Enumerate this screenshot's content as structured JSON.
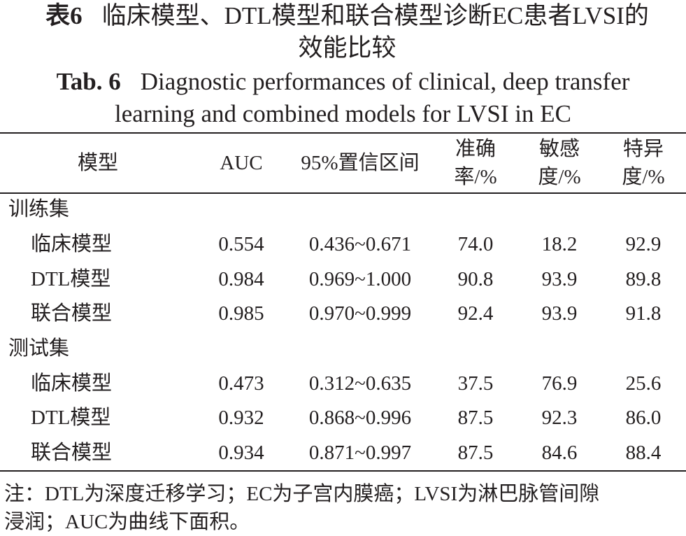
{
  "caption": {
    "cn_label": "表6",
    "cn_title_line1": "临床模型、DTL模型和联合模型诊断EC患者LVSI的",
    "cn_title_line2": "效能比较",
    "en_label": "Tab. 6",
    "en_title_line1": "Diagnostic performances of clinical, deep transfer",
    "en_title_line2": "learning and combined models for LVSI in EC"
  },
  "table": {
    "headers": {
      "model": "模型",
      "auc": "AUC",
      "ci": "95%置信区间",
      "accuracy_1": "准确",
      "accuracy_2": "率/%",
      "sensitivity_1": "敏感",
      "sensitivity_2": "度/%",
      "specificity_1": "特异",
      "specificity_2": "度/%"
    },
    "groups": [
      {
        "name": "训练集",
        "rows": [
          {
            "model": "临床模型",
            "auc": "0.554",
            "ci": "0.436~0.671",
            "accuracy": "74.0",
            "sensitivity": "18.2",
            "specificity": "92.9"
          },
          {
            "model": "DTL模型",
            "auc": "0.984",
            "ci": "0.969~1.000",
            "accuracy": "90.8",
            "sensitivity": "93.9",
            "specificity": "89.8"
          },
          {
            "model": "联合模型",
            "auc": "0.985",
            "ci": "0.970~0.999",
            "accuracy": "92.4",
            "sensitivity": "93.9",
            "specificity": "91.8"
          }
        ]
      },
      {
        "name": "测试集",
        "rows": [
          {
            "model": "临床模型",
            "auc": "0.473",
            "ci": "0.312~0.635",
            "accuracy": "37.5",
            "sensitivity": "76.9",
            "specificity": "25.6"
          },
          {
            "model": "DTL模型",
            "auc": "0.932",
            "ci": "0.868~0.996",
            "accuracy": "87.5",
            "sensitivity": "92.3",
            "specificity": "86.0"
          },
          {
            "model": "联合模型",
            "auc": "0.934",
            "ci": "0.871~0.997",
            "accuracy": "87.5",
            "sensitivity": "84.6",
            "specificity": "88.4"
          }
        ]
      }
    ]
  },
  "note": {
    "line1": "注：DTL为深度迁移学习；EC为子宫内膜癌；LVSI为淋巴脉管间隙",
    "line2": "浸润；AUC为曲线下面积。"
  }
}
